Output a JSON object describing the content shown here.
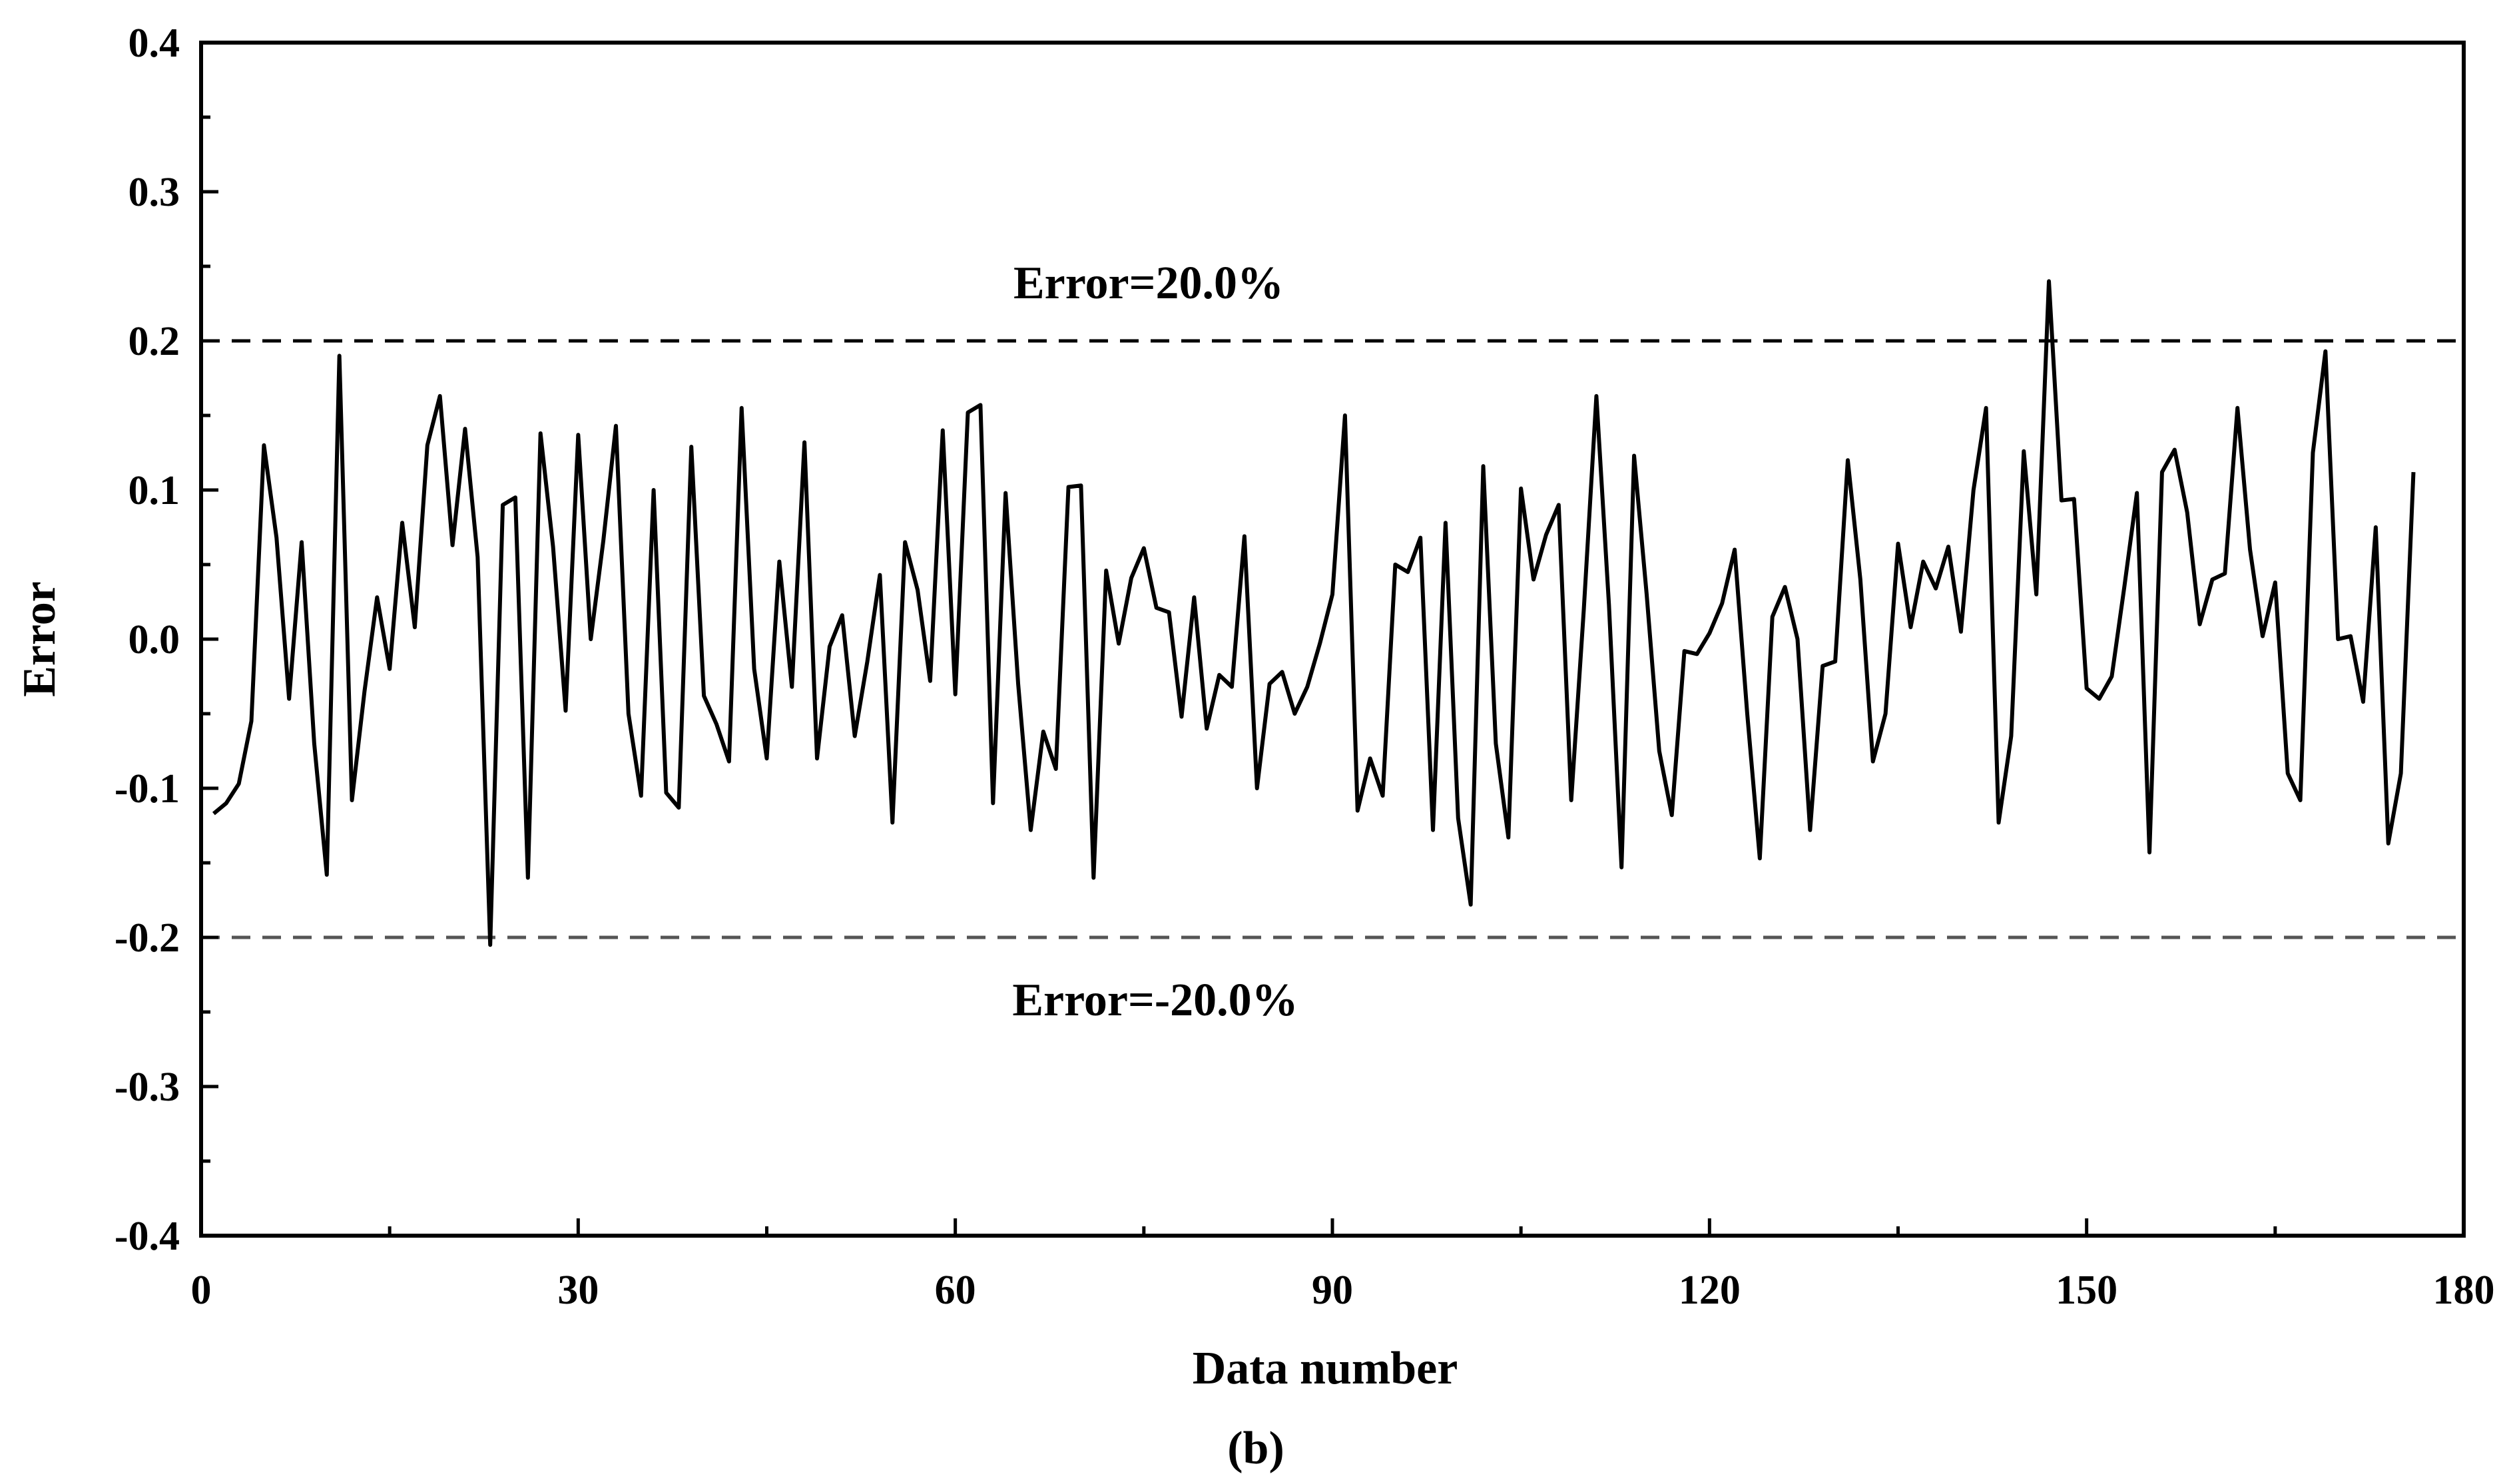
{
  "chart_data": {
    "type": "line",
    "xlabel": "Data number",
    "ylabel": "Error",
    "panel_label": "(b)",
    "xlim": [
      0,
      180
    ],
    "ylim": [
      -0.4,
      0.4
    ],
    "x_ticks": [
      "0",
      "30",
      "60",
      "90",
      "120",
      "150",
      "180"
    ],
    "y_ticks": [
      "-0.4",
      "-0.3",
      "-0.2",
      "-0.1",
      "0.0",
      "0.1",
      "0.2",
      "0.3",
      "0.4"
    ],
    "grid": false,
    "reference_lines": [
      {
        "y": 0.2,
        "label": "Error=20.0%"
      },
      {
        "y": -0.2,
        "label": "Error=-20.0%"
      }
    ],
    "series": [
      {
        "values": [
          -0.117,
          -0.11,
          -0.097,
          -0.055,
          0.13,
          0.068,
          -0.04,
          0.065,
          -0.07,
          -0.158,
          0.19,
          -0.108,
          -0.035,
          0.028,
          -0.02,
          0.078,
          0.008,
          0.13,
          0.163,
          0.063,
          0.141,
          0.055,
          -0.205,
          0.09,
          0.095,
          -0.16,
          0.138,
          0.062,
          -0.048,
          0.137,
          0.0,
          0.066,
          0.143,
          -0.05,
          -0.105,
          0.1,
          -0.103,
          -0.113,
          0.129,
          -0.038,
          -0.057,
          -0.082,
          0.155,
          -0.02,
          -0.08,
          0.052,
          -0.032,
          0.132,
          -0.08,
          -0.005,
          0.016,
          -0.065,
          -0.015,
          0.043,
          -0.123,
          0.065,
          0.033,
          -0.028,
          0.14,
          -0.037,
          0.152,
          0.157,
          -0.11,
          0.098,
          -0.03,
          -0.128,
          -0.062,
          -0.087,
          0.102,
          0.103,
          -0.16,
          0.046,
          -0.003,
          0.041,
          0.061,
          0.021,
          0.018,
          -0.052,
          0.028,
          -0.06,
          -0.024,
          -0.032,
          0.069,
          -0.1,
          -0.03,
          -0.022,
          -0.05,
          -0.032,
          -0.003,
          0.03,
          0.15,
          -0.115,
          -0.08,
          -0.105,
          0.05,
          0.045,
          0.068,
          -0.128,
          0.078,
          -0.12,
          -0.178,
          0.116,
          -0.07,
          -0.133,
          0.101,
          0.04,
          0.07,
          0.09,
          -0.108,
          0.02,
          0.163,
          0.023,
          -0.153,
          0.123,
          0.03,
          -0.075,
          -0.118,
          -0.008,
          -0.01,
          0.004,
          0.024,
          0.06,
          -0.05,
          -0.147,
          0.015,
          0.035,
          0.0,
          -0.128,
          -0.018,
          -0.015,
          0.12,
          0.04,
          -0.082,
          -0.05,
          0.064,
          0.008,
          0.052,
          0.034,
          0.062,
          0.005,
          0.1,
          0.155,
          -0.123,
          -0.065,
          0.126,
          0.03,
          0.24,
          0.093,
          0.094,
          -0.033,
          -0.04,
          -0.025,
          0.035,
          0.098,
          -0.143,
          0.112,
          0.127,
          0.085,
          0.01,
          0.04,
          0.044,
          0.155,
          0.06,
          0.002,
          0.038,
          -0.09,
          -0.108,
          0.125,
          0.193,
          0.0,
          0.002,
          -0.042,
          0.075,
          -0.137,
          -0.09,
          0.112
        ]
      }
    ]
  }
}
